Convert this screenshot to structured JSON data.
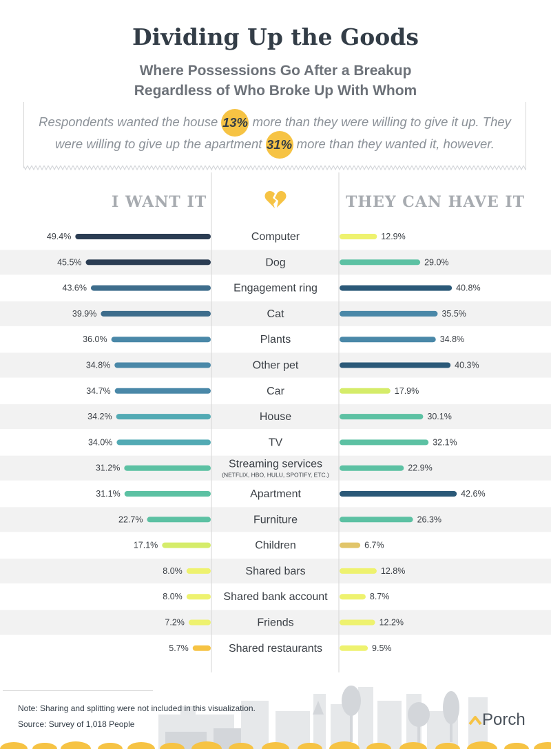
{
  "header": {
    "title": "Dividing Up the Goods",
    "subtitle_line1": "Where Possessions Go After a Breakup",
    "subtitle_line2": "Regardless of Who Broke Up With Whom"
  },
  "callout": {
    "line1_before": "Respondents wanted the house",
    "line1_pct": "13%",
    "line1_after": "more than they were willing to give it up. They",
    "line2_before": "were willing to give up the apartment",
    "line2_pct": "31%",
    "line2_after": "more than they wanted it, however."
  },
  "colors": {
    "dark_navy": "#2b3d53",
    "steel_blue": "#3e6d8c",
    "blue": "#4a88a8",
    "teal": "#52aab4",
    "sea_green": "#5cc1a3",
    "lime": "#d5ec6a",
    "yellow_green": "#eef26f",
    "mustard": "#e1c56a",
    "gold": "#f6c344",
    "axis": "#d5d5d5",
    "stripe": "#f2f2f2"
  },
  "icons": {
    "center": "broken-heart-icon",
    "logo": "porch-logo-icon"
  },
  "chart_data": {
    "type": "bar",
    "headings": {
      "left": "I WANT IT",
      "right": "THEY CAN HAVE IT"
    },
    "categories": [
      "Computer",
      "Dog",
      "Engagement ring",
      "Cat",
      "Plants",
      "Other pet",
      "Car",
      "House",
      "TV",
      "Streaming services",
      "Apartment",
      "Furniture",
      "Children",
      "Shared bars",
      "Shared bank account",
      "Friends",
      "Shared restaurants"
    ],
    "category_notes": [
      "",
      "",
      "",
      "",
      "",
      "",
      "",
      "",
      "",
      "(NETFLIX, HBO, HULU, SPOTIFY, ETC.)",
      "",
      "",
      "",
      "",
      "",
      "",
      ""
    ],
    "series": [
      {
        "name": "I WANT IT",
        "values": [
          49.4,
          45.5,
          43.6,
          39.9,
          36.0,
          34.8,
          34.7,
          34.2,
          34.0,
          31.2,
          31.1,
          22.7,
          17.1,
          8.0,
          8.0,
          7.2,
          5.7
        ],
        "labels": [
          "49.4%",
          "45.5%",
          "43.6%",
          "39.9%",
          "36.0%",
          "34.8%",
          "34.7%",
          "34.2%",
          "34.0%",
          "31.2%",
          "31.1%",
          "22.7%",
          "17.1%",
          "8.0%",
          "8.0%",
          "7.2%",
          "5.7%"
        ],
        "colors": [
          "#2b3d53",
          "#2b3d53",
          "#3e6d8c",
          "#3e6d8c",
          "#4a88a8",
          "#4a88a8",
          "#4a88a8",
          "#52aab4",
          "#52aab4",
          "#5cc1a3",
          "#5cc1a3",
          "#5cc1a3",
          "#d5ec6a",
          "#eef26f",
          "#eef26f",
          "#eef26f",
          "#f6c344"
        ]
      },
      {
        "name": "THEY CAN HAVE IT",
        "values": [
          12.9,
          29.0,
          40.8,
          35.5,
          34.8,
          40.3,
          17.9,
          30.1,
          32.1,
          22.9,
          42.6,
          26.3,
          6.7,
          12.8,
          8.7,
          12.2,
          9.5
        ],
        "labels": [
          "12.9%",
          "29.0%",
          "40.8%",
          "35.5%",
          "34.8%",
          "40.3%",
          "17.9%",
          "30.1%",
          "32.1%",
          "22.9%",
          "42.6%",
          "26.3%",
          "6.7%",
          "12.8%",
          "8.7%",
          "12.2%",
          "9.5%"
        ],
        "colors": [
          "#eef26f",
          "#5cc1a3",
          "#2b5978",
          "#4a88a8",
          "#4a88a8",
          "#2b5978",
          "#d5ec6a",
          "#5cc1a3",
          "#5cc1a3",
          "#5cc1a3",
          "#2b5978",
          "#5cc1a3",
          "#e1c56a",
          "#eef26f",
          "#eef26f",
          "#eef26f",
          "#eef26f"
        ]
      }
    ],
    "xlim": [
      0,
      50
    ]
  },
  "footer": {
    "note": "Note: Sharing and splitting were not included in this visualization.",
    "source": "Source: Survey of 1,018 People",
    "brand": "Porch"
  }
}
